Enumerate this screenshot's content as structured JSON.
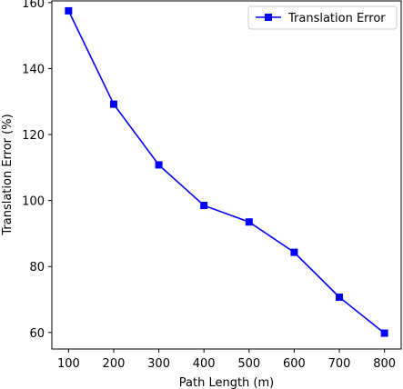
{
  "chart_data": {
    "type": "line",
    "title": "",
    "xlabel": "Path Length (m)",
    "ylabel": "Translation Error (%)",
    "x": [
      100,
      200,
      300,
      400,
      500,
      600,
      700,
      800
    ],
    "series": [
      {
        "name": "Translation Error",
        "values": [
          157.5,
          129.2,
          110.8,
          98.5,
          93.5,
          84.3,
          70.7,
          59.8
        ],
        "color": "#0000ff",
        "marker": "square"
      }
    ],
    "xlim": [
      63,
      837
    ],
    "ylim": [
      55,
      160.5
    ],
    "xticks": [
      100,
      200,
      300,
      400,
      500,
      600,
      700,
      800
    ],
    "yticks": [
      60,
      80,
      100,
      120,
      140,
      160
    ],
    "grid": false,
    "legend_position": "top-right"
  }
}
